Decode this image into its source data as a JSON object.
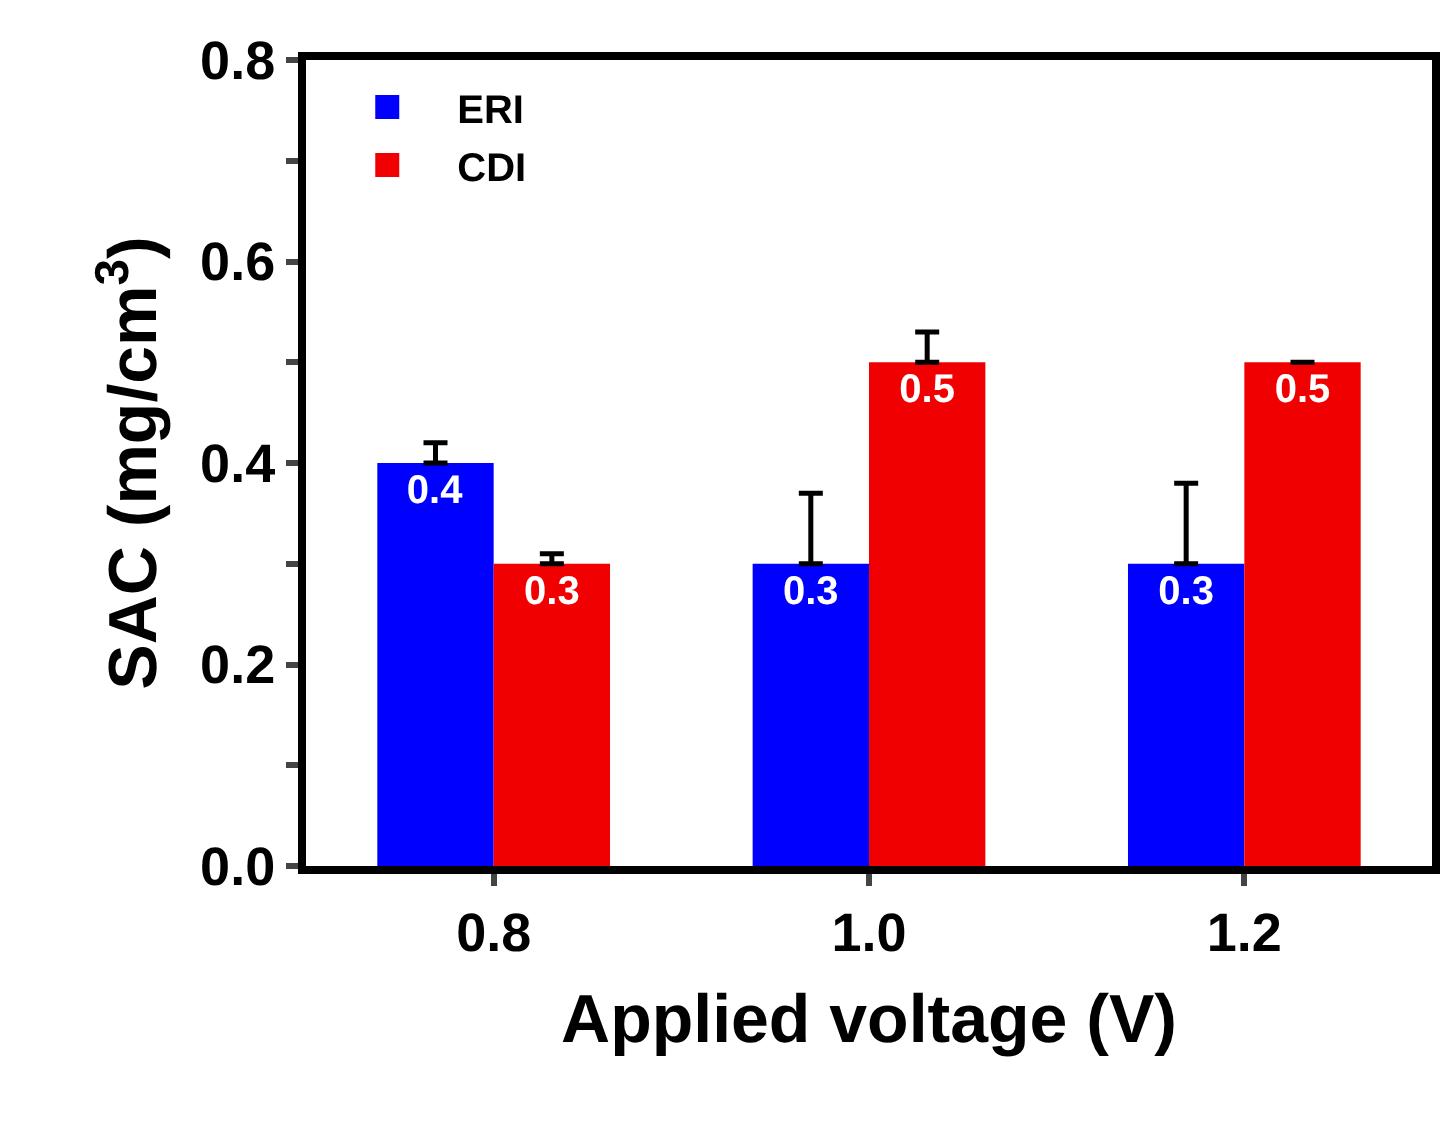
{
  "chart_data": {
    "type": "bar",
    "categories": [
      "0.8",
      "1.0",
      "1.2"
    ],
    "xlabel": "Applied voltage (V)",
    "ylabel": "SAC (mg/cm$^{3}$)",
    "series": [
      {
        "name": "ERI",
        "color": "#0000ff",
        "values": [
          0.4,
          0.3,
          0.3
        ],
        "errors": [
          [
            0.4,
            0.42
          ],
          [
            0.3,
            0.37
          ],
          [
            0.3,
            0.38
          ]
        ]
      },
      {
        "name": "CDI",
        "color": "#f00000",
        "values": [
          0.3,
          0.5,
          0.5
        ],
        "errors": [
          [
            0.3,
            0.31
          ],
          [
            0.5,
            0.53
          ],
          [
            0.5,
            0.5
          ]
        ]
      }
    ],
    "ylim": [
      0,
      0.8
    ],
    "yticks": [
      {
        "value": 0.0,
        "label": "0.0"
      },
      {
        "value": 0.1,
        "label": null
      },
      {
        "value": 0.2,
        "label": "0.2"
      },
      {
        "value": 0.3,
        "label": null
      },
      {
        "value": 0.4,
        "label": "0.4"
      },
      {
        "value": 0.5,
        "label": null
      },
      {
        "value": 0.6,
        "label": "0.6"
      },
      {
        "value": 0.7,
        "label": null
      },
      {
        "value": 0.8,
        "label": "0.8"
      }
    ],
    "data_labels": true,
    "legend": "top left"
  }
}
